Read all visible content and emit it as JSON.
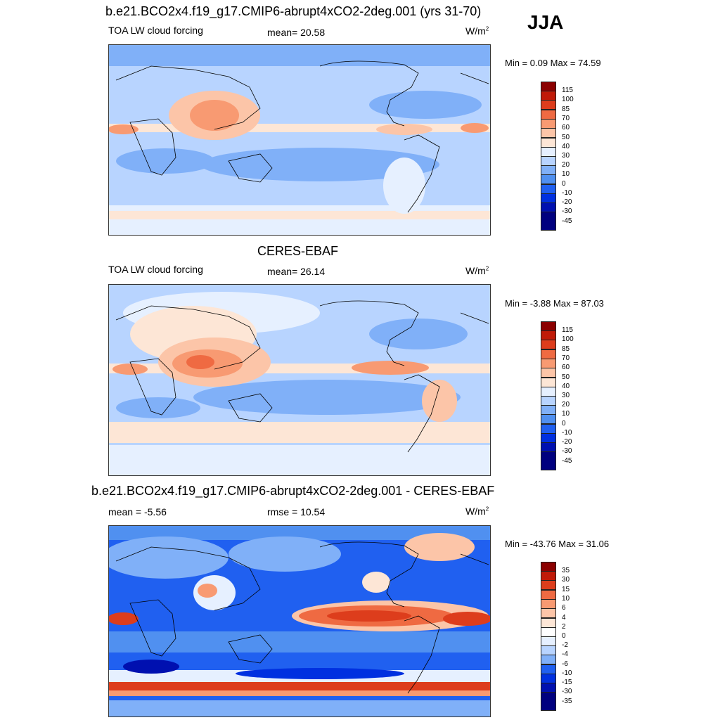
{
  "season": "JJA",
  "colors": {
    "abs_scale": [
      "#00007f",
      "#0010b0",
      "#0030e0",
      "#2060f0",
      "#5090f0",
      "#80b0f8",
      "#b8d4ff",
      "#e6f0ff",
      "#fde6d6",
      "#fcc5a8",
      "#f89a72",
      "#ef6a42",
      "#dd3d1c",
      "#c01a08",
      "#8b0000"
    ],
    "diff_scale": [
      "#00007f",
      "#0010b0",
      "#0030e0",
      "#2060f0",
      "#5090f0",
      "#80b0f8",
      "#b8d4ff",
      "#e6f0ff",
      "#fde6d6",
      "#fcc5a8",
      "#f89a72",
      "#ef6a42",
      "#dd3d1c",
      "#c01a08",
      "#8b0000"
    ]
  },
  "panels": [
    {
      "title": "b.e21.BCO2x4.f19_g17.CMIP6-abrupt4xCO2-2deg.001 (yrs 31-70)",
      "left_label": "TOA LW cloud forcing",
      "mid_label": "mean=  20.58",
      "units": "W/m",
      "units_sup": "2",
      "minmax": "Min =   0.09 Max =  74.59",
      "ticks": [
        "115",
        "100",
        "85",
        "70",
        "60",
        "50",
        "40",
        "30",
        "20",
        "10",
        "0",
        "-10",
        "-20",
        "-30",
        "-45"
      ]
    },
    {
      "title": "CERES-EBAF",
      "left_label": "TOA LW cloud forcing",
      "mid_label": "mean=  26.14",
      "units": "W/m",
      "units_sup": "2",
      "minmax": "Min =  -3.88 Max =  87.03",
      "ticks": [
        "115",
        "100",
        "85",
        "70",
        "60",
        "50",
        "40",
        "30",
        "20",
        "10",
        "0",
        "-10",
        "-20",
        "-30",
        "-45"
      ]
    },
    {
      "title": "b.e21.BCO2x4.f19_g17.CMIP6-abrupt4xCO2-2deg.001 - CERES-EBAF",
      "left_label": "mean =  -5.56",
      "mid_label": "rmse =  10.54",
      "units": "W/m",
      "units_sup": "2",
      "minmax": "Min = -43.76 Max =  31.06",
      "ticks": [
        "35",
        "30",
        "15",
        "10",
        "6",
        "4",
        "2",
        "0",
        "-2",
        "-4",
        "-6",
        "-10",
        "-15",
        "-30",
        "-35"
      ]
    }
  ]
}
